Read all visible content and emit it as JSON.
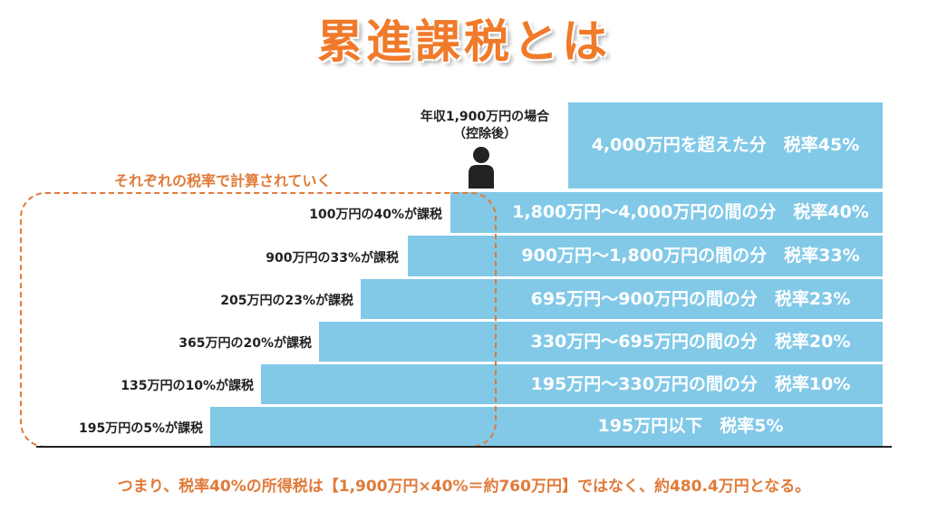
{
  "title": "累進課税とは",
  "person": {
    "caption_line1": "年収1,900万円の場合",
    "caption_line2": "（控除後）"
  },
  "dashed_label": "それぞれの税率で計算されていく",
  "brackets": [
    {
      "label": "4,000万円を超えた分　税率45%"
    },
    {
      "label": "1,800万円～4,000万円の間の分　税率40%"
    },
    {
      "label": "900万円～1,800万円の間の分　税率33%"
    },
    {
      "label": "695万円～900万円の間の分　税率23%"
    },
    {
      "label": "330万円～695万円の間の分　税率20%"
    },
    {
      "label": "195万円～330万円の間の分　税率10%"
    },
    {
      "label": "195万円以下　税率5%"
    }
  ],
  "taxed_steps": [
    {
      "label": "100万円の40%が課税"
    },
    {
      "label": "900万円の33%が課税"
    },
    {
      "label": "205万円の23%が課税"
    },
    {
      "label": "365万円の20%が課税"
    },
    {
      "label": "135万円の10%が課税"
    },
    {
      "label": "195万円の5%が課税"
    }
  ],
  "footer": "つまり、税率40%の所得税は【1,900万円×40%＝約760万円】ではなく、約480.4万円となる。",
  "colors": {
    "bar": "#82c9e8",
    "accent": "#e07b3a",
    "title": "#f07a2a"
  }
}
